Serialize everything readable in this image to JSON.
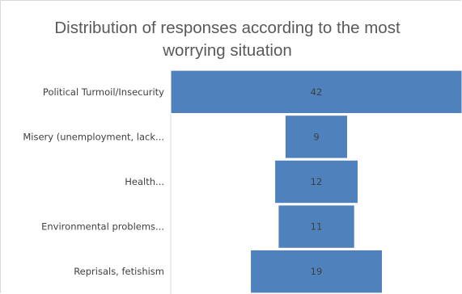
{
  "chart_data": {
    "type": "bar",
    "orientation": "horizontal",
    "layout": "funnel",
    "title": "Distribution of responses according to the most worrying situation",
    "title_lines": [
      "Distribution of responses according to the most",
      "worrying situation"
    ],
    "categories": [
      "Political Turmoil/Insecurity",
      "Misery (unemployment, lack...",
      "Health...",
      "Environmental problems...",
      "Reprisals, fetishism"
    ],
    "values": [
      42,
      9,
      12,
      11,
      19
    ],
    "data_labels": [
      "42",
      "9",
      "12",
      "11",
      "19"
    ],
    "xlim": [
      0,
      42
    ],
    "grid": false,
    "legend": "none",
    "bar_color": "#4f81bd",
    "bar_border_color": "#ffffff",
    "axis_color": "#d9d9d9"
  }
}
